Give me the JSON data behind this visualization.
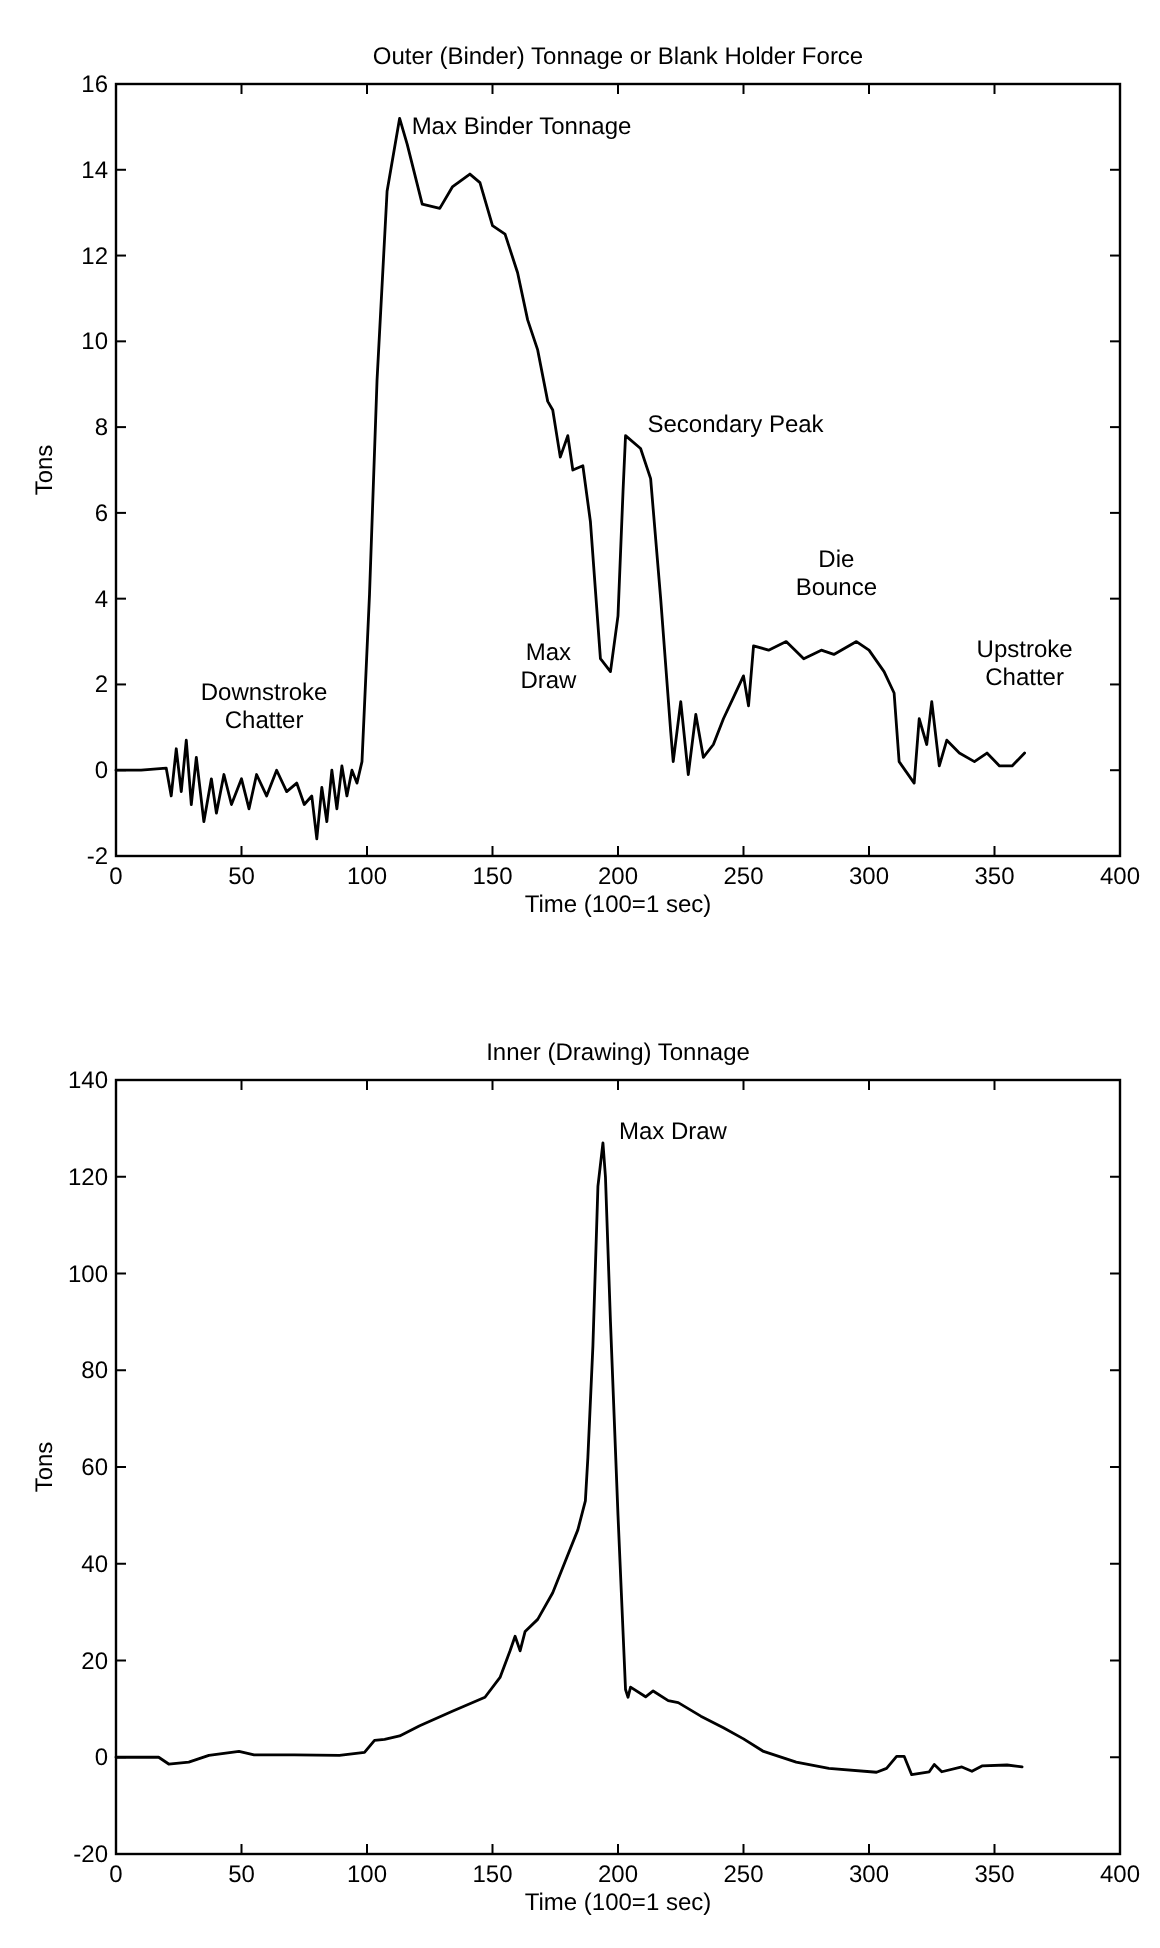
{
  "chart_data": [
    {
      "type": "line",
      "title": "Outer (Binder) Tonnage or Blank Holder Force",
      "xlabel": "Time (100=1 sec)",
      "ylabel": "Tons",
      "xlim": [
        0,
        400
      ],
      "xticks": [
        0,
        50,
        100,
        150,
        200,
        250,
        300,
        350,
        400
      ],
      "ylim": [
        -2,
        16
      ],
      "yticks": [
        -2,
        0,
        2,
        4,
        6,
        8,
        10,
        12,
        14,
        16
      ],
      "grid": false,
      "series": [
        {
          "color": "#000000",
          "x": [
            0,
            10,
            20,
            22,
            24,
            26,
            28,
            30,
            32,
            35,
            38,
            40,
            43,
            46,
            50,
            53,
            56,
            60,
            64,
            68,
            72,
            75,
            78,
            80,
            82,
            84,
            86,
            88,
            90,
            92,
            94,
            96,
            98,
            101,
            104,
            108,
            113,
            116,
            119,
            122,
            129,
            134,
            141,
            145,
            150,
            155,
            160,
            164,
            168,
            172,
            174,
            177,
            180,
            182,
            186,
            189,
            193,
            197,
            200,
            202,
            203,
            209,
            213,
            217,
            221,
            222,
            225,
            228,
            231,
            234,
            238,
            242,
            246,
            250,
            252,
            254,
            260,
            267,
            274,
            281,
            286,
            295,
            300,
            306,
            310,
            312,
            318,
            320,
            323,
            325,
            328,
            331,
            336,
            342,
            347,
            352,
            357,
            362
          ],
          "values": [
            0,
            0,
            0.05,
            -0.6,
            0.5,
            -0.5,
            0.7,
            -0.8,
            0.3,
            -1.2,
            -0.2,
            -1,
            -0.1,
            -0.8,
            -0.2,
            -0.9,
            -0.1,
            -0.6,
            0,
            -0.5,
            -0.3,
            -0.8,
            -0.6,
            -1.6,
            -0.4,
            -1.2,
            0,
            -0.9,
            0.1,
            -0.6,
            0,
            -0.3,
            0.2,
            4.1,
            9.1,
            13.5,
            15.2,
            14.6,
            13.9,
            13.2,
            13.1,
            13.6,
            13.9,
            13.7,
            12.7,
            12.5,
            11.6,
            10.5,
            9.8,
            8.6,
            8.4,
            7.3,
            7.8,
            7.0,
            7.1,
            5.8,
            2.6,
            2.3,
            3.6,
            6.5,
            7.8,
            7.5,
            6.8,
            4.0,
            0.9,
            0.2,
            1.6,
            -0.1,
            1.3,
            0.3,
            0.6,
            1.2,
            1.7,
            2.2,
            1.5,
            2.9,
            2.8,
            3.0,
            2.6,
            2.8,
            2.7,
            3.0,
            2.8,
            2.3,
            1.8,
            0.2,
            -0.3,
            1.2,
            0.6,
            1.6,
            0.1,
            0.7,
            0.4,
            0.2,
            0.4,
            0.1,
            0.1,
            0.4
          ]
        }
      ],
      "annotations": [
        {
          "text": "Max Binder Tonnage",
          "x": 113,
          "y": 15.2
        },
        {
          "text": "Secondary Peak",
          "x": 203,
          "y": 7.8
        },
        {
          "text": "Max Draw",
          "x": 197,
          "y": 2.3
        },
        "Downstroke Chatter",
        "Die Bounce",
        "Upstroke Chatter"
      ]
    },
    {
      "type": "line",
      "title": "Inner (Drawing) Tonnage",
      "xlabel": "Time (100=1 sec)",
      "ylabel": "Tons",
      "xlim": [
        0,
        400
      ],
      "xticks": [
        0,
        50,
        100,
        150,
        200,
        250,
        300,
        350,
        400
      ],
      "ylim": [
        -20,
        140
      ],
      "yticks": [
        -20,
        0,
        20,
        40,
        60,
        80,
        100,
        120,
        140
      ],
      "grid": false,
      "series": [
        {
          "color": "#000000",
          "x": [
            0,
            17,
            21,
            29,
            37,
            49,
            55,
            71,
            89,
            99,
            103,
            107,
            113,
            121,
            134,
            147,
            153,
            157,
            159,
            161,
            163,
            168,
            174,
            179,
            184,
            187,
            188,
            190,
            192,
            194,
            195,
            197,
            200,
            203,
            204,
            205,
            211,
            214,
            220,
            224,
            233,
            242,
            250,
            258,
            271,
            284,
            303,
            307,
            311,
            314,
            317,
            324,
            326,
            329,
            337,
            341,
            345,
            355,
            361
          ],
          "values": [
            0,
            0,
            -1.4,
            -1.0,
            0.4,
            1.2,
            0.5,
            0.5,
            0.4,
            1,
            3.5,
            3.7,
            4.4,
            6.5,
            9.5,
            12.4,
            16.5,
            22,
            25,
            22,
            26,
            28.5,
            34,
            40.5,
            47,
            53,
            62,
            85,
            118,
            127,
            120,
            90,
            50,
            14,
            12.4,
            14.5,
            12.5,
            13.7,
            11.7,
            11.3,
            8.5,
            6.1,
            3.8,
            1.2,
            -1,
            -2.3,
            -3.1,
            -2.3,
            0.2,
            0.2,
            -3.6,
            -3,
            -1.5,
            -3,
            -2,
            -2.9,
            -1.8,
            -1.6,
            -2
          ]
        }
      ],
      "annotations": [
        {
          "text": "Max Draw",
          "x": 194,
          "y": 127
        }
      ]
    }
  ]
}
